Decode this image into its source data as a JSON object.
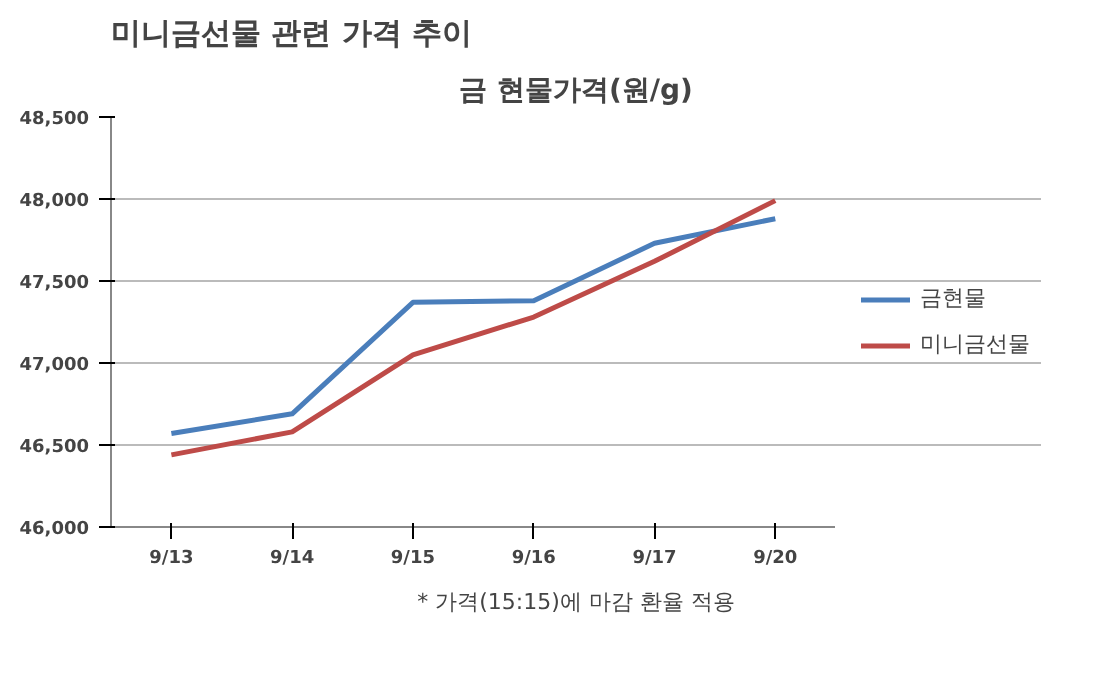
{
  "chart_data": {
    "type": "line",
    "title": "미니금선물 관련 가격 추이",
    "subtitle": "금 현물가격(원/g)",
    "categories": [
      "9/13",
      "9/14",
      "9/15",
      "9/16",
      "9/17",
      "9/20"
    ],
    "series": [
      {
        "name": "금현물",
        "color": "#4a7ebb",
        "values": [
          46570,
          46690,
          47370,
          47380,
          47730,
          47880
        ]
      },
      {
        "name": "미니금선물",
        "color": "#be4b48",
        "values": [
          46440,
          46580,
          47050,
          47280,
          47620,
          47990
        ]
      }
    ],
    "ylim": [
      46000,
      48500
    ],
    "yticks": [
      {
        "value": 46000,
        "label": "46,000"
      },
      {
        "value": 46500,
        "label": "46,500"
      },
      {
        "value": 47000,
        "label": "47,000"
      },
      {
        "value": 47500,
        "label": "47,500"
      },
      {
        "value": 48000,
        "label": "48,000"
      },
      {
        "value": 48500,
        "label": "48,500"
      }
    ],
    "grid": "y",
    "legend": "right",
    "marker": "none",
    "line_style": "solid",
    "annotations": [
      "* 가격(15:15)에 마감 환율 적용"
    ]
  }
}
